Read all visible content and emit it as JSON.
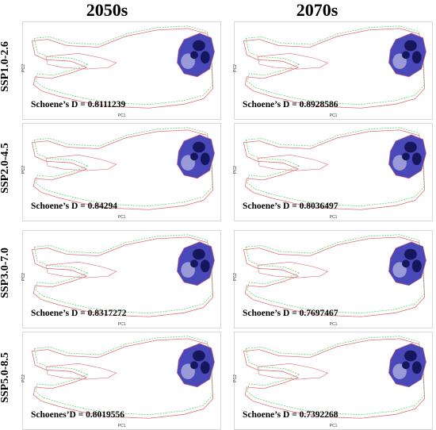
{
  "columns": [
    "2050s",
    "2070s"
  ],
  "rows": [
    "SSP1.0-2.6",
    "SSP2.0-4.5",
    "SSP3.0-7.0",
    "SSP5.0-8.5"
  ],
  "axis": {
    "xlabel": "PC1",
    "ylabel": "PC2"
  },
  "colors": {
    "line_red": "#e0707a",
    "line_green": "#5bd06a",
    "density_dark": "#16165c",
    "density_mid": "#4848b8",
    "density_light": "#9a9ad8"
  },
  "chart_data": [
    {
      "type": "heatmap",
      "scenario": "SSP1.0-2.6",
      "period": "2050s",
      "stat_text": "Schoene’s D = 0.8111239",
      "schoener_d": 0.8111239
    },
    {
      "type": "heatmap",
      "scenario": "SSP1.0-2.6",
      "period": "2070s",
      "stat_text": "Schoene’s D = 0.8928586",
      "schoener_d": 0.8928586
    },
    {
      "type": "heatmap",
      "scenario": "SSP2.0-4.5",
      "period": "2050s",
      "stat_text": "Schoene’s D = 0.84294",
      "schoener_d": 0.84294
    },
    {
      "type": "heatmap",
      "scenario": "SSP2.0-4.5",
      "period": "2070s",
      "stat_text": "Schoene’s D = 0.8036497",
      "schoener_d": 0.8036497
    },
    {
      "type": "heatmap",
      "scenario": "SSP3.0-7.0",
      "period": "2050s",
      "stat_text": "Schoene’s D = 0.8317272",
      "schoener_d": 0.8317272
    },
    {
      "type": "heatmap",
      "scenario": "SSP3.0-7.0",
      "period": "2070s",
      "stat_text": "Schoene’s D = 0.7697467",
      "schoener_d": 0.7697467
    },
    {
      "type": "heatmap",
      "scenario": "SSP5.0-8.5",
      "period": "2050s",
      "stat_text": "Schoenes’D = 0.8019556",
      "schoener_d": 0.8019556
    },
    {
      "type": "heatmap",
      "scenario": "SSP5.0-8.5",
      "period": "2070s",
      "stat_text": "Schoene’s D = 0.7392268",
      "schoener_d": 0.7392268
    }
  ]
}
